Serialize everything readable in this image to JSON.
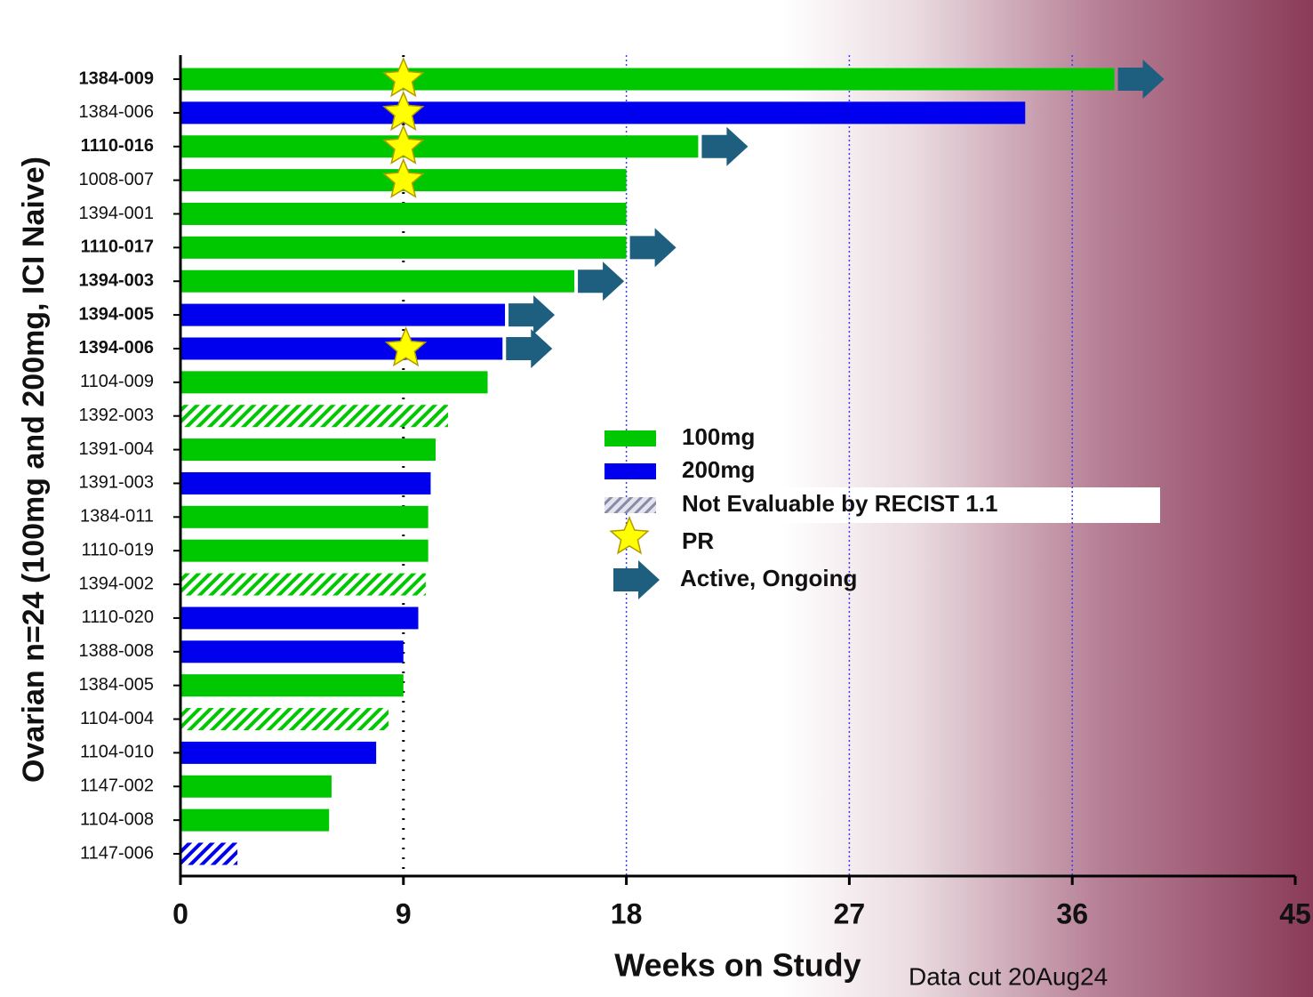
{
  "chart_data": {
    "type": "swimmer",
    "y_label": "Ovarian n=24 (100mg and 200mg, ICI Naive)",
    "x_label": "Weeks on Study",
    "note": "Data cut 20Aug24",
    "categories": [
      "1384-009",
      "1384-006",
      "1110-016",
      "1008-007",
      "1394-001",
      "1110-017",
      "1394-003",
      "1394-005",
      "1394-006",
      "1104-009",
      "1392-003",
      "1391-004",
      "1391-003",
      "1384-011",
      "1110-019",
      "1394-002",
      "1110-020",
      "1388-008",
      "1384-005",
      "1104-004",
      "1104-010",
      "1147-002",
      "1104-008",
      "1147-006"
    ],
    "values": [
      37.7,
      34.1,
      20.9,
      18.0,
      18.0,
      18.0,
      15.9,
      13.1,
      13.0,
      12.4,
      10.8,
      10.3,
      10.1,
      10.0,
      10.0,
      9.9,
      9.6,
      9.0,
      9.0,
      8.4,
      7.9,
      6.1,
      6.0,
      2.3
    ],
    "group": [
      0,
      1,
      0,
      0,
      0,
      0,
      0,
      1,
      1,
      0,
      0,
      0,
      1,
      0,
      0,
      0,
      1,
      1,
      0,
      0,
      1,
      0,
      0,
      1
    ],
    "evaluable": [
      true,
      true,
      true,
      true,
      true,
      true,
      true,
      true,
      true,
      true,
      false,
      true,
      true,
      true,
      true,
      false,
      true,
      true,
      true,
      false,
      true,
      true,
      true,
      false
    ],
    "ongoing": [
      true,
      false,
      true,
      false,
      false,
      true,
      true,
      true,
      true,
      false,
      false,
      false,
      false,
      false,
      false,
      false,
      false,
      false,
      false,
      false,
      false,
      false,
      false,
      false
    ],
    "pr": [
      9,
      9,
      9,
      9,
      null,
      null,
      null,
      null,
      9.1,
      null,
      null,
      null,
      null,
      null,
      null,
      null,
      null,
      null,
      null,
      null,
      null,
      null,
      null,
      null
    ],
    "series": [
      {
        "name": "100mg",
        "color": "#00c800"
      },
      {
        "name": "200mg",
        "color": "#0000ee"
      }
    ],
    "legend_labels": [
      "Not Evaluable by RECIST 1.1",
      "PR",
      "Active, Ongoing"
    ],
    "arrow_color": "#1e5f80",
    "star_color": "#ffff00",
    "xlim": [
      0,
      45
    ],
    "xticks": [
      0,
      9,
      18,
      27,
      36,
      45
    ],
    "reference_x": 9,
    "grid": true
  }
}
